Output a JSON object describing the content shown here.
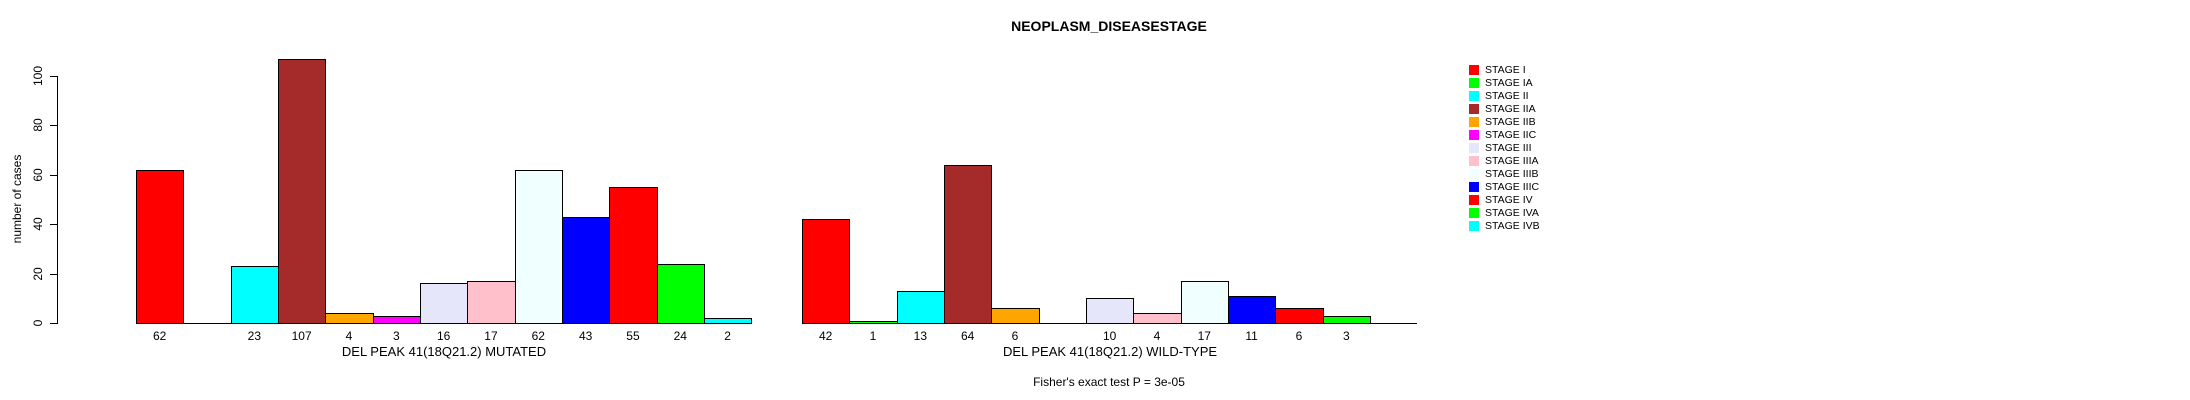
{
  "chart_data": {
    "type": "bar",
    "title": "NEOPLASM_DISEASESTAGE",
    "ylabel": "number of cases",
    "ylim": [
      0,
      100
    ],
    "yticks": [
      0,
      20,
      40,
      60,
      80,
      100
    ],
    "grid": false,
    "legend_position": "right",
    "categories": [
      "STAGE I",
      "STAGE IA",
      "STAGE II",
      "STAGE IIA",
      "STAGE IIB",
      "STAGE IIC",
      "STAGE III",
      "STAGE IIIA",
      "STAGE IIIB",
      "STAGE IIIC",
      "STAGE IV",
      "STAGE IVA",
      "STAGE IVB"
    ],
    "colors": [
      "#FF0000",
      "#00FF00",
      "#00FFFF",
      "#A52A2A",
      "#FFA500",
      "#FF00FF",
      "#E6E6FA",
      "#FFC0CB",
      "#F0FFFF",
      "#0000FF",
      "#FF0000",
      "#00FF00",
      "#00FFFF"
    ],
    "groups": [
      {
        "label": "DEL PEAK 41(18Q21.2) MUTATED",
        "values": [
          62,
          0,
          23,
          107,
          4,
          3,
          16,
          17,
          62,
          43,
          55,
          24,
          2
        ]
      },
      {
        "label": "DEL PEAK 41(18Q21.2) WILD-TYPE",
        "values": [
          42,
          1,
          13,
          64,
          6,
          0,
          10,
          4,
          17,
          11,
          6,
          3,
          0
        ]
      }
    ],
    "footer": "Fisher's exact test P = 3e-05"
  }
}
